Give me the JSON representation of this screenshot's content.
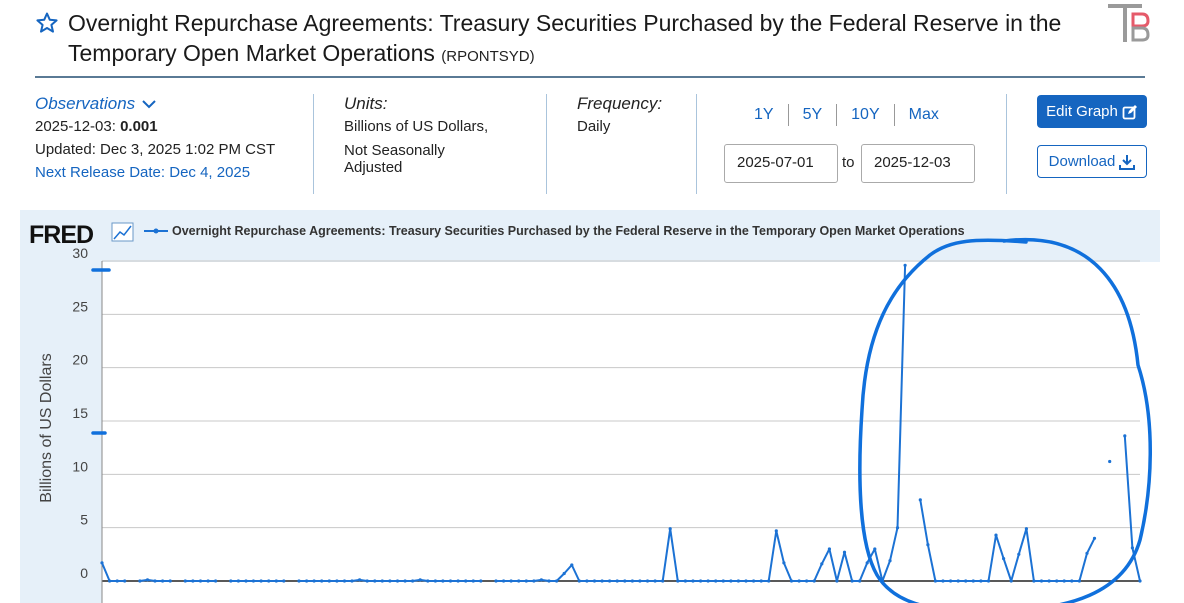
{
  "header": {
    "title": "Overnight Repurchase Agreements: Treasury Securities Purchased by the Federal Reserve in the Temporary Open Market Operations",
    "series_id": "(RPONTSYD)"
  },
  "observations": {
    "label": "Observations",
    "date": "2025-12-03:",
    "value": "0.001",
    "updated": "Updated: Dec 3, 2025 1:02 PM CST",
    "next_release": "Next Release Date: Dec 4, 2025"
  },
  "units": {
    "label": "Units:",
    "line1": "Billions of US Dollars,",
    "line2": "Not Seasonally",
    "line3": "Adjusted"
  },
  "frequency": {
    "label": "Frequency:",
    "value": "Daily"
  },
  "ranges": [
    "1Y",
    "5Y",
    "10Y",
    "Max"
  ],
  "date_range": {
    "start": "2025-07-01",
    "to": "to",
    "end": "2025-12-03"
  },
  "buttons": {
    "edit_graph": "Edit Graph",
    "download": "Download"
  },
  "colors": {
    "accent": "#1565c0",
    "line": "#1c72d4",
    "annotation": "#1070dc",
    "panel_bg": "#e6f0f9"
  },
  "chart_data": {
    "type": "line",
    "brand": "FRED",
    "legend": "Overnight Repurchase Agreements: Treasury Securities Purchased by the Federal Reserve in the Temporary Open Market Operations",
    "ylabel": "Billions of US Dollars",
    "ylim": [
      0,
      30
    ],
    "yticks": [
      0,
      5,
      10,
      15,
      20,
      25,
      30
    ],
    "grid": true,
    "series": [
      {
        "values": [
          1.7,
          0,
          0,
          0,
          null,
          0,
          0.1,
          0,
          0,
          0,
          null,
          0,
          0,
          0,
          0,
          0,
          null,
          0,
          0,
          0,
          0,
          0,
          0,
          0,
          0,
          null,
          0,
          0,
          0,
          0,
          0,
          0,
          0,
          0,
          0.1,
          0,
          0,
          0,
          0,
          0,
          0,
          0,
          0.1,
          0,
          0,
          0,
          0,
          0,
          0,
          0,
          0,
          null,
          0,
          0,
          0,
          0,
          0,
          0,
          0.1,
          0,
          0,
          0.7,
          1.5,
          0,
          0,
          0,
          0,
          0,
          0,
          0,
          0,
          0,
          0,
          0,
          0,
          4.9,
          0,
          0,
          0,
          0,
          0,
          0,
          0,
          0,
          0,
          0,
          0,
          0,
          0,
          4.7,
          1.7,
          0,
          0,
          0,
          0,
          1.6,
          3,
          0,
          2.7,
          0,
          0,
          1.7,
          3,
          0,
          1.9,
          5,
          29.6,
          null,
          7.6,
          3.4,
          0,
          0,
          0,
          0,
          0,
          0,
          0,
          0,
          4.3,
          2.1,
          0,
          2.5,
          4.9,
          0,
          0,
          0,
          0,
          0,
          0,
          0,
          2.6,
          4,
          null,
          11.2,
          null,
          13.6,
          3.1,
          0.001
        ]
      }
    ]
  }
}
